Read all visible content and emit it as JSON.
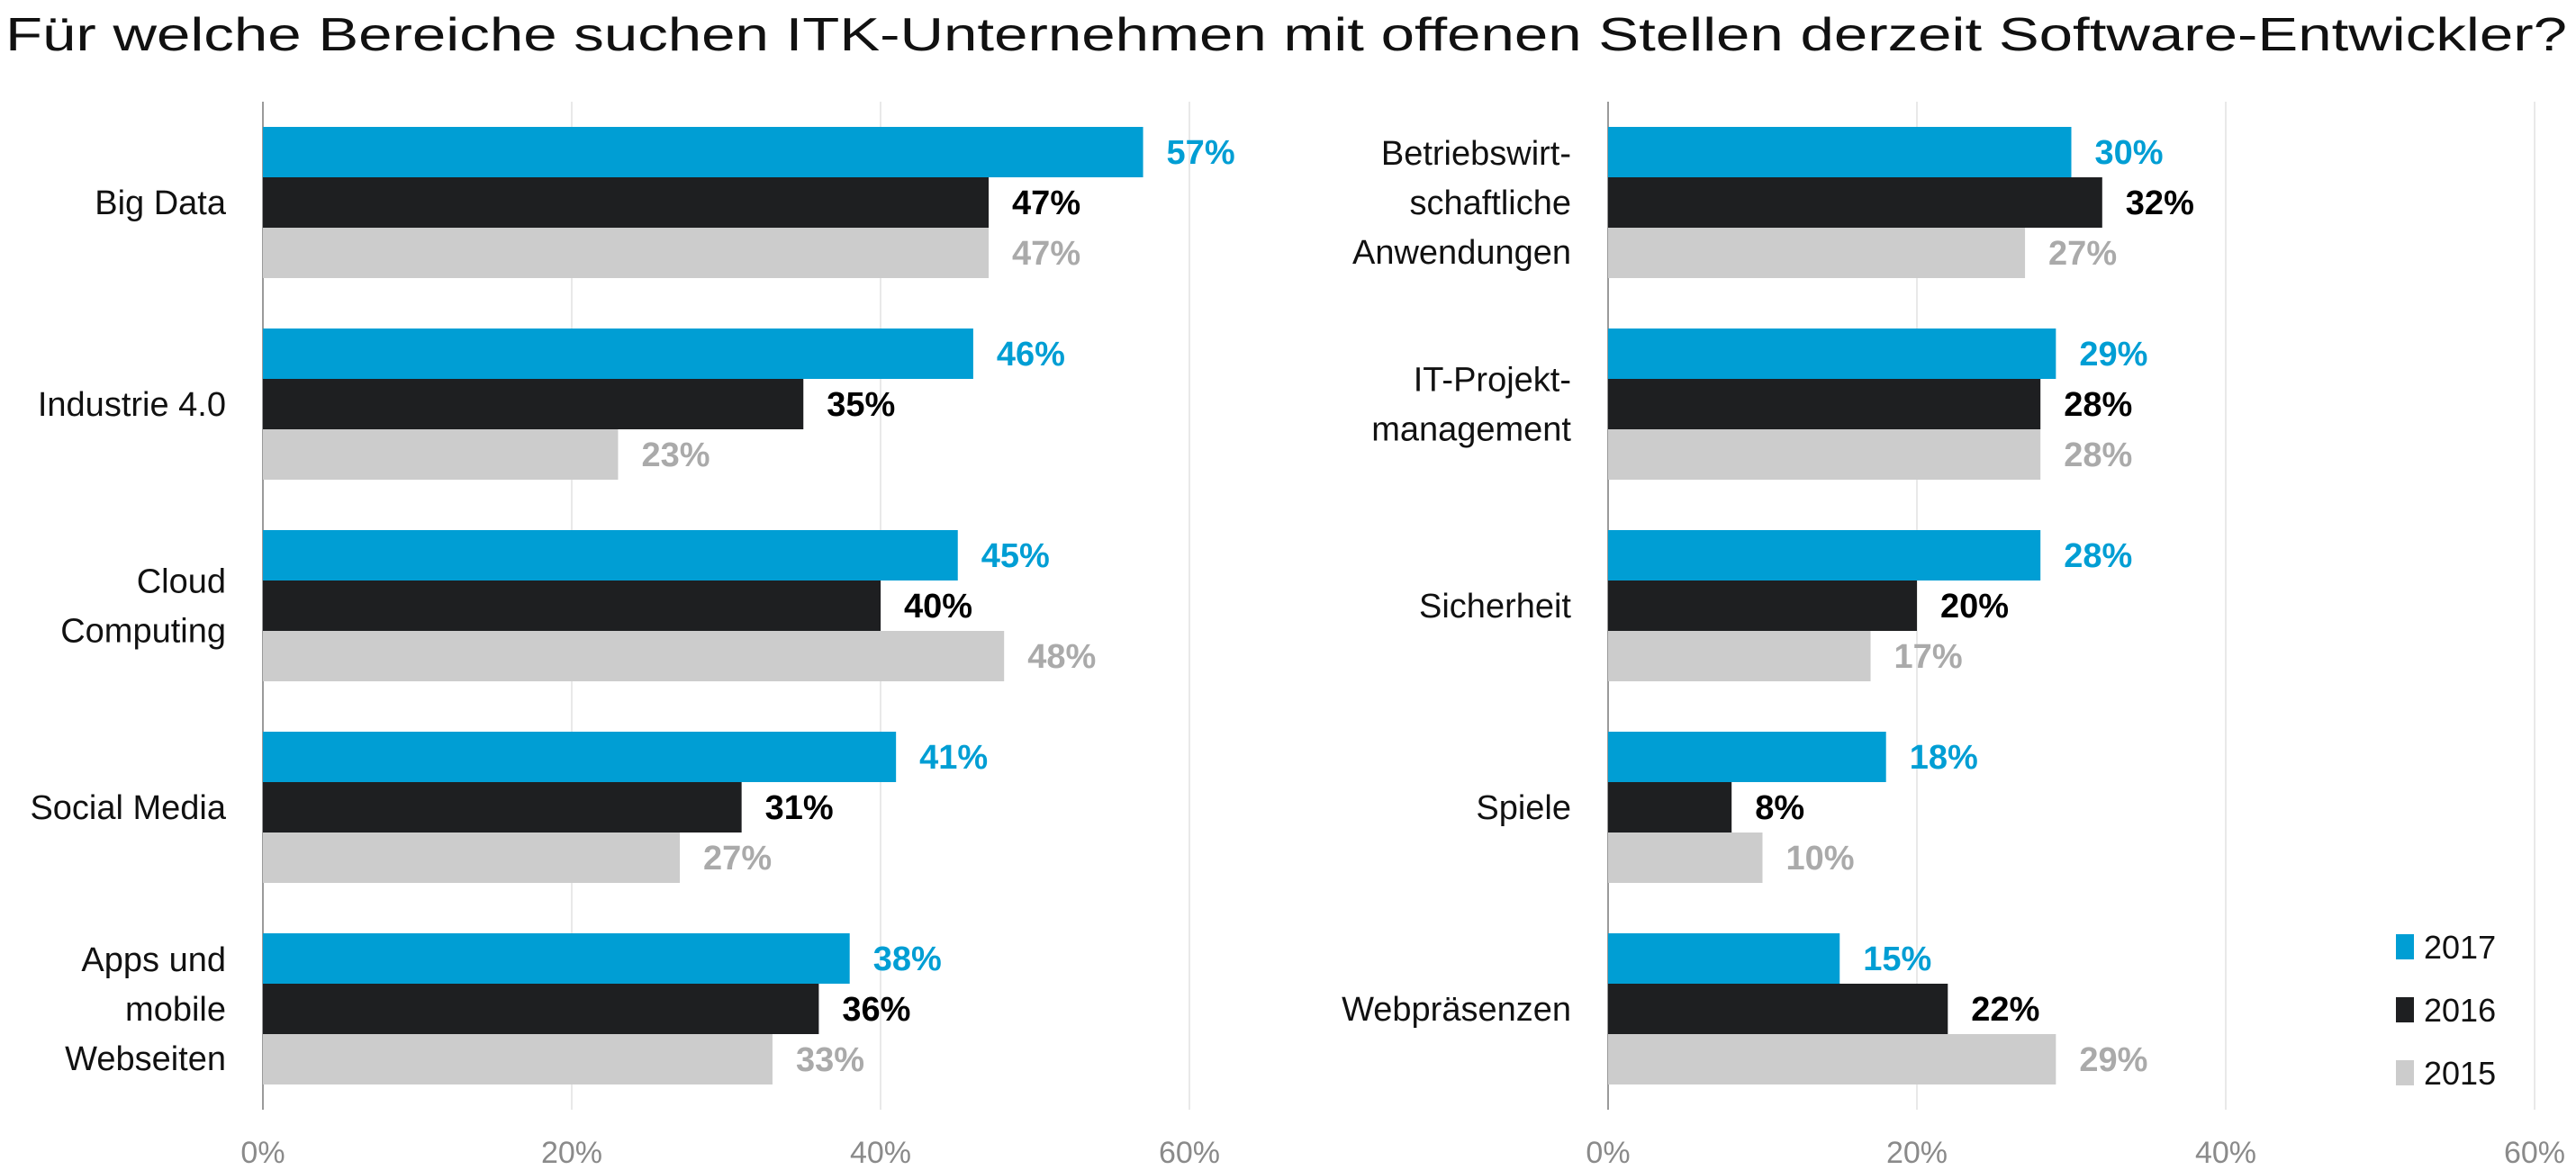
{
  "chart_data": [
    {
      "type": "bar",
      "orientation": "horizontal",
      "title": "Für welche Bereiche suchen ITK-Unternehmen mit offenen Stellen derzeit Software-Entwickler?",
      "categories": [
        [
          "Big Data"
        ],
        [
          "Industrie 4.0"
        ],
        [
          "Cloud",
          "Computing"
        ],
        [
          "Social Media"
        ],
        [
          "Apps und",
          "mobile",
          "Webseiten"
        ]
      ],
      "series": [
        {
          "name": "2017",
          "color": "#009ED4",
          "label_color": "#009ED4",
          "values": [
            57,
            46,
            45,
            41,
            38
          ]
        },
        {
          "name": "2016",
          "color": "#1E1F21",
          "label_color": "#000000",
          "values": [
            47,
            35,
            40,
            31,
            36
          ]
        },
        {
          "name": "2015",
          "color": "#CCCCCC",
          "label_color": "#AAAAAA",
          "values": [
            47,
            23,
            48,
            27,
            33
          ]
        }
      ],
      "xlim": [
        0,
        60
      ],
      "xticks": [
        "0%",
        "20%",
        "40%",
        "60%"
      ],
      "value_suffix": "%",
      "grid": true
    },
    {
      "type": "bar",
      "orientation": "horizontal",
      "categories": [
        [
          "Betriebswirt-",
          "schaftliche",
          "Anwendungen"
        ],
        [
          "IT-Projekt-",
          "management"
        ],
        [
          "Sicherheit"
        ],
        [
          "Spiele"
        ],
        [
          "Webpräsenzen"
        ]
      ],
      "series": [
        {
          "name": "2017",
          "color": "#009ED4",
          "label_color": "#009ED4",
          "values": [
            30,
            29,
            28,
            18,
            15
          ]
        },
        {
          "name": "2016",
          "color": "#1E1F21",
          "label_color": "#000000",
          "values": [
            32,
            28,
            20,
            8,
            22
          ]
        },
        {
          "name": "2015",
          "color": "#CCCCCC",
          "label_color": "#AAAAAA",
          "values": [
            27,
            28,
            17,
            10,
            29
          ]
        }
      ],
      "xlim": [
        0,
        60
      ],
      "xticks": [
        "0%",
        "20%",
        "40%",
        "60%"
      ],
      "value_suffix": "%",
      "grid": true,
      "legend": {
        "placement": "bottom-right",
        "entries": [
          "2017",
          "2016",
          "2015"
        ]
      }
    }
  ]
}
